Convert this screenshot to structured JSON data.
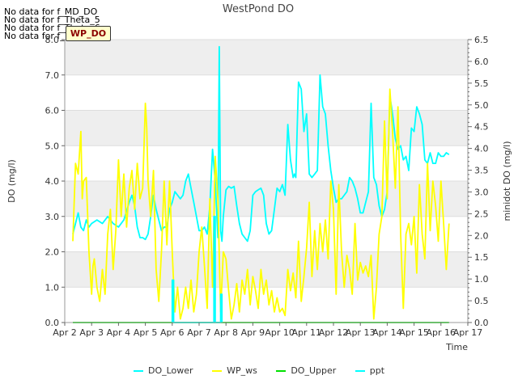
{
  "no_data_messages": [
    "No data for f_MD_DO",
    "No data for f_Theta_5",
    "No data for f_Theta_6",
    "No data for f_Theta_7"
  ],
  "badge_label": "WP_DO",
  "colors": {
    "DO_Lower": "#00ffff",
    "WP_ws": "#ffff00",
    "DO_Upper": "#00e000",
    "ppt": "#00ffff",
    "band": "#eeeeee",
    "grid": "#dddddd"
  },
  "chart_data": {
    "type": "line",
    "title": "WestPond DO",
    "xlabel": "Time",
    "ylabel_left": "DO (mg/l)",
    "ylabel_right": "minidot DO (mg/l)",
    "xlim": [
      2,
      17
    ],
    "ylim_left": [
      0,
      8
    ],
    "ylim_right": [
      0,
      6.5
    ],
    "x_ticks": [
      2,
      3,
      4,
      5,
      6,
      7,
      8,
      9,
      10,
      11,
      12,
      13,
      14,
      15,
      16,
      17
    ],
    "x_tick_labels": [
      "Apr 2",
      "Apr 3",
      "Apr 4",
      "Apr 5",
      "Apr 6",
      "Apr 7",
      "Apr 8",
      "Apr 9",
      "Apr 10",
      "Apr 11",
      "Apr 12",
      "Apr 13",
      "Apr 14",
      "Apr 15",
      "Apr 16",
      "Apr 17"
    ],
    "y_left_ticks": [
      0.0,
      1.0,
      2.0,
      3.0,
      4.0,
      5.0,
      6.0,
      7.0,
      8.0
    ],
    "y_left_tick_labels": [
      "0.0",
      "1.0",
      "2.0",
      "3.0",
      "4.0",
      "5.0",
      "6.0",
      "7.0",
      "8.0"
    ],
    "y_right_ticks": [
      0.0,
      0.5,
      1.0,
      1.5,
      2.0,
      2.5,
      3.0,
      3.5,
      4.0,
      4.5,
      5.0,
      5.5,
      6.0,
      6.5
    ],
    "y_right_tick_labels": [
      "0.0",
      "0.5",
      "1.0",
      "1.5",
      "2.0",
      "2.5",
      "3.0",
      "3.5",
      "4.0",
      "4.5",
      "5.0",
      "5.5",
      "6.0",
      "6.5"
    ],
    "grid": true,
    "legend_position": "bottom",
    "series": [
      {
        "name": "DO_Lower",
        "axis": "left",
        "x": [
          2.3,
          2.4,
          2.5,
          2.6,
          2.7,
          2.8,
          2.9,
          3.0,
          3.2,
          3.4,
          3.6,
          3.8,
          4.0,
          4.2,
          4.4,
          4.5,
          4.6,
          4.7,
          4.8,
          4.9,
          5.0,
          5.1,
          5.2,
          5.3,
          5.4,
          5.5,
          5.6,
          5.7,
          5.8,
          5.9,
          6.0,
          6.1,
          6.2,
          6.3,
          6.4,
          6.5,
          6.6,
          6.7,
          6.8,
          6.9,
          7.0,
          7.1,
          7.2,
          7.3,
          7.4,
          7.5,
          7.6,
          7.7,
          7.75,
          7.8,
          7.85,
          7.9,
          8.0,
          8.1,
          8.2,
          8.3,
          8.4,
          8.5,
          8.6,
          8.7,
          8.8,
          8.9,
          9.0,
          9.1,
          9.2,
          9.3,
          9.4,
          9.5,
          9.6,
          9.7,
          9.8,
          9.9,
          10.0,
          10.1,
          10.2,
          10.3,
          10.4,
          10.5,
          10.55,
          10.6,
          10.7,
          10.8,
          10.9,
          11.0,
          11.1,
          11.2,
          11.3,
          11.4,
          11.5,
          11.6,
          11.7,
          11.8,
          11.9,
          12.0,
          12.1,
          12.2,
          12.3,
          12.4,
          12.5,
          12.6,
          12.7,
          12.8,
          12.9,
          13.0,
          13.1,
          13.2,
          13.3,
          13.4,
          13.5,
          13.6,
          13.7,
          13.8,
          13.9,
          14.0,
          14.1,
          14.2,
          14.3,
          14.4,
          14.5,
          14.6,
          14.7,
          14.8,
          14.9,
          15.0,
          15.1,
          15.2,
          15.3,
          15.4,
          15.5,
          15.6,
          15.7,
          15.8,
          15.9,
          16.0,
          16.1,
          16.2,
          16.3
        ],
        "y": [
          2.5,
          2.8,
          3.1,
          2.7,
          2.6,
          2.9,
          2.7,
          2.8,
          2.9,
          2.8,
          3.0,
          2.8,
          2.7,
          2.9,
          3.4,
          3.6,
          3.3,
          2.7,
          2.4,
          2.4,
          2.35,
          2.5,
          3.0,
          3.6,
          3.2,
          2.9,
          2.6,
          2.7,
          2.7,
          3.2,
          3.4,
          3.7,
          3.6,
          3.5,
          3.6,
          4.0,
          4.2,
          3.8,
          3.4,
          3.0,
          2.6,
          2.6,
          2.7,
          2.5,
          3.3,
          4.9,
          4.0,
          2.4,
          7.8,
          2.6,
          2.3,
          3.0,
          3.75,
          3.85,
          3.8,
          3.85,
          3.3,
          2.8,
          2.5,
          2.4,
          2.3,
          2.6,
          3.6,
          3.7,
          3.75,
          3.8,
          3.6,
          2.8,
          2.5,
          2.6,
          3.2,
          3.8,
          3.7,
          3.9,
          3.6,
          5.6,
          4.6,
          4.1,
          4.2,
          4.1,
          6.8,
          6.6,
          5.4,
          5.9,
          4.2,
          4.1,
          4.2,
          4.3,
          7.0,
          6.1,
          5.9,
          5.0,
          4.3,
          3.8,
          3.4,
          3.5,
          3.5,
          3.6,
          3.7,
          4.1,
          4.0,
          3.8,
          3.5,
          3.1,
          3.1,
          3.4,
          3.7,
          6.2,
          4.1,
          3.9,
          3.3,
          3.0,
          3.2,
          3.7,
          6.4,
          5.9,
          5.2,
          4.9,
          5.0,
          4.6,
          4.7,
          4.3,
          5.5,
          5.4,
          6.1,
          5.9,
          5.6,
          4.6,
          4.5,
          4.8,
          4.5,
          4.5,
          4.8,
          4.7,
          4.7,
          4.8,
          4.75
        ],
        "segments_break_after": []
      },
      {
        "name": "WP_ws",
        "axis": "left",
        "x": [
          2.3,
          2.4,
          2.5,
          2.6,
          2.65,
          2.7,
          2.8,
          2.9,
          3.0,
          3.05,
          3.1,
          3.2,
          3.3,
          3.4,
          3.5,
          3.6,
          3.7,
          3.8,
          3.9,
          4.0,
          4.1,
          4.2,
          4.3,
          4.4,
          4.5,
          4.6,
          4.7,
          4.8,
          4.9,
          5.0,
          5.05,
          5.1,
          5.2,
          5.3,
          5.4,
          5.5,
          5.6,
          5.7,
          5.8,
          5.9,
          6.0,
          6.1,
          6.2,
          6.3,
          6.4,
          6.5,
          6.6,
          6.7,
          6.8,
          6.9,
          7.0,
          7.1,
          7.2,
          7.3,
          7.4,
          7.5,
          7.6,
          7.7,
          7.8,
          7.9,
          8.0,
          8.1,
          8.2,
          8.3,
          8.4,
          8.5,
          8.6,
          8.7,
          8.8,
          8.9,
          9.0,
          9.1,
          9.2,
          9.3,
          9.4,
          9.5,
          9.6,
          9.7,
          9.8,
          9.9,
          10.0,
          10.1,
          10.2,
          10.3,
          10.4,
          10.5,
          10.6,
          10.7,
          10.8,
          10.9,
          11.0,
          11.1,
          11.2,
          11.3,
          11.4,
          11.5,
          11.6,
          11.7,
          11.8,
          11.9,
          12.0,
          12.1,
          12.2,
          12.3,
          12.4,
          12.5,
          12.6,
          12.7,
          12.8,
          12.9,
          13.0,
          13.1,
          13.2,
          13.3,
          13.4,
          13.5,
          13.6,
          13.7,
          13.8,
          13.9,
          14.0,
          14.1,
          14.2,
          14.3,
          14.4,
          14.5,
          14.6,
          14.7,
          14.8,
          14.9,
          15.0,
          15.1,
          15.2,
          15.3,
          15.4,
          15.5,
          15.6,
          15.7,
          15.8,
          15.9,
          16.0,
          16.1,
          16.2,
          16.3
        ],
        "y": [
          2.3,
          4.5,
          4.2,
          5.4,
          3.5,
          4.0,
          4.1,
          2.0,
          0.8,
          1.6,
          1.8,
          1.0,
          0.6,
          1.5,
          0.8,
          2.5,
          3.2,
          1.5,
          2.6,
          4.6,
          3.0,
          4.2,
          2.7,
          3.8,
          4.3,
          3.2,
          4.5,
          3.5,
          3.8,
          6.2,
          5.5,
          4.0,
          3.0,
          4.3,
          1.5,
          0.6,
          2.0,
          4.0,
          2.2,
          4.0,
          2.0,
          0.3,
          1.0,
          0.1,
          0.4,
          1.0,
          0.4,
          1.2,
          0.3,
          0.8,
          2.0,
          2.7,
          1.6,
          0.4,
          3.5,
          1.0,
          4.7,
          3.5,
          0.3,
          2.0,
          1.8,
          0.9,
          0.1,
          0.5,
          1.1,
          0.3,
          1.2,
          0.8,
          1.5,
          0.5,
          1.3,
          0.9,
          0.4,
          1.5,
          0.8,
          1.2,
          0.5,
          0.9,
          0.3,
          0.7,
          0.3,
          0.4,
          0.2,
          1.5,
          0.9,
          1.4,
          0.7,
          2.3,
          0.6,
          1.3,
          2.1,
          3.4,
          1.3,
          2.6,
          1.5,
          2.8,
          2.0,
          2.9,
          1.8,
          4.0,
          3.2,
          0.8,
          3.9,
          2.0,
          1.0,
          1.9,
          1.5,
          0.8,
          2.8,
          1.2,
          1.7,
          1.4,
          1.6,
          1.3,
          1.9,
          0.1,
          1.0,
          2.5,
          3.0,
          5.7,
          3.5,
          6.6,
          5.4,
          3.8,
          6.1,
          2.5,
          0.4,
          2.5,
          2.8,
          2.2,
          3.0,
          1.4,
          3.9,
          2.5,
          1.8,
          4.5,
          2.6,
          4.0,
          3.3,
          2.3,
          4.0,
          2.8,
          1.5,
          2.8
        ],
        "segments_break_after": []
      },
      {
        "name": "DO_Upper",
        "axis": "left",
        "x": [
          2.3,
          16.3
        ],
        "y": [
          0.0,
          0.0
        ],
        "segments_break_after": []
      },
      {
        "name": "ppt",
        "axis": "left",
        "x": [
          6.0,
          6.0,
          6.05,
          6.05,
          7.55,
          7.55,
          7.6,
          7.6,
          7.8,
          7.8,
          7.85,
          7.85
        ],
        "y": [
          0.0,
          1.2,
          1.2,
          0.0,
          0.0,
          3.0,
          3.0,
          0.0,
          0.0,
          0.8,
          0.8,
          0.0
        ],
        "segments_break_after": []
      }
    ]
  }
}
